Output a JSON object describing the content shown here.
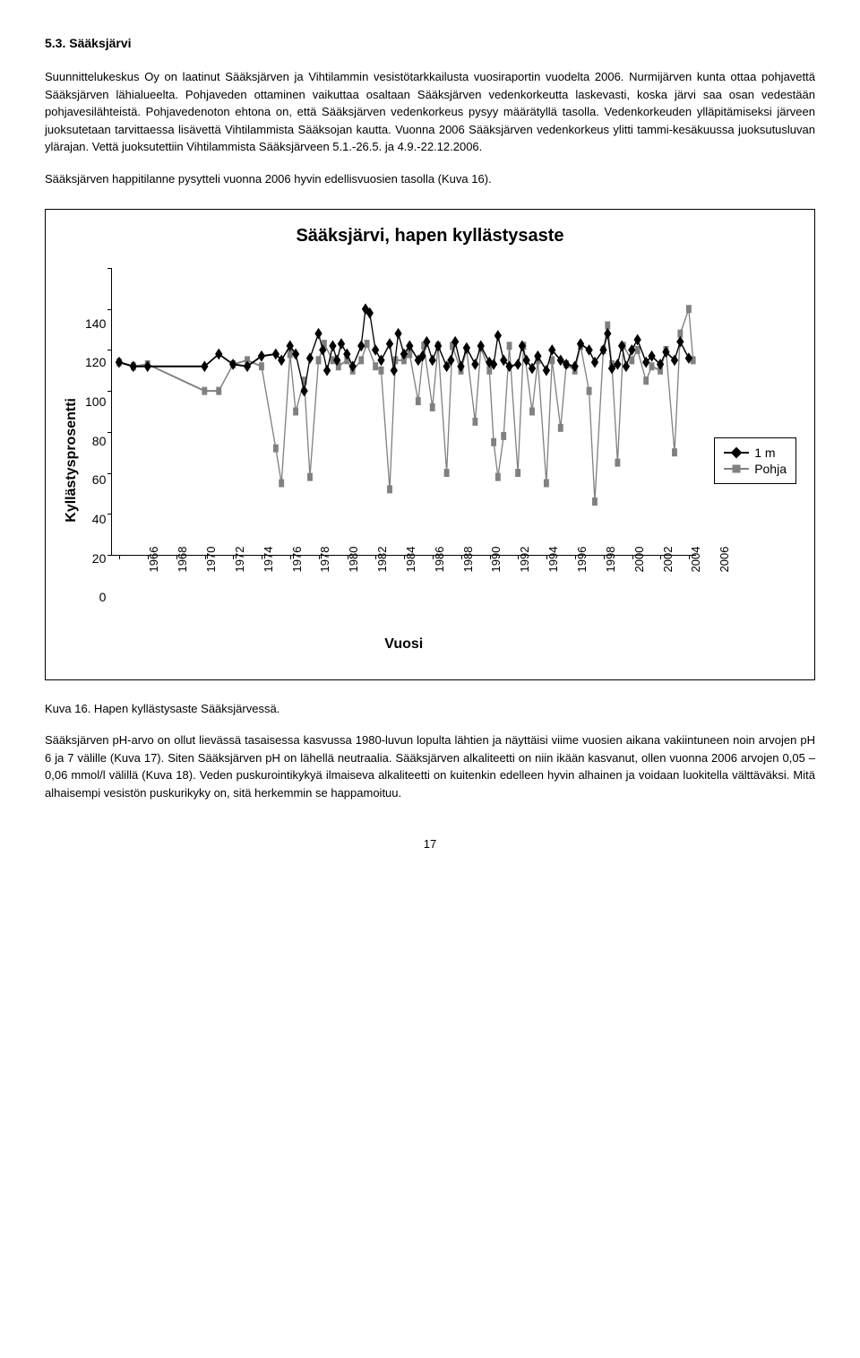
{
  "section_heading": "5.3. Sääksjärvi",
  "para1": "Suunnittelukeskus Oy on laatinut Sääksjärven ja Vihtilammin vesistötarkkailusta vuosiraportin vuodelta 2006. Nurmijärven kunta ottaa pohjavettä Sääksjärven lähialueelta. Pohjaveden ottaminen vaikuttaa osaltaan Sääksjärven vedenkorkeutta laskevasti, koska järvi saa osan vedestään pohjavesilähteistä. Pohjavedenoton ehtona on, että Sääksjärven vedenkorkeus pysyy määrätyllä tasolla. Vedenkorkeuden ylläpitämiseksi järveen juoksutetaan tarvittaessa lisävettä Vihtilammista Sääksojan kautta. Vuonna 2006 Sääksjärven vedenkorkeus ylitti tammi-kesäkuussa juoksutusluvan ylärajan. Vettä juoksutettiin Vihtilammista Sääksjärveen 5.1.-26.5. ja 4.9.-22.12.2006.",
  "para2": "Sääksjärven happitilanne pysytteli vuonna 2006 hyvin edellisvuosien tasolla (Kuva 16).",
  "chart": {
    "title": "Sääksjärvi, hapen kyllästysaste",
    "ylabel": "Kyllästysprosentti",
    "xlabel": "Vuosi",
    "ylim": [
      0,
      140
    ],
    "ytick_step": 20,
    "xmin": 1966,
    "xmax": 2006,
    "xlabels": [
      1966,
      1968,
      1970,
      1972,
      1974,
      1976,
      1978,
      1980,
      1982,
      1984,
      1986,
      1988,
      1990,
      1992,
      1994,
      1996,
      1998,
      2000,
      2002,
      2004,
      2006
    ],
    "legend": [
      {
        "label": "1 m",
        "color": "#000000",
        "marker": "diamond"
      },
      {
        "label": "Pohja",
        "color": "#808080",
        "marker": "square"
      }
    ],
    "series_1m": {
      "color": "#000000",
      "marker": "diamond",
      "points": [
        [
          1966,
          94
        ],
        [
          1967,
          92
        ],
        [
          1968,
          92
        ],
        [
          1972,
          92
        ],
        [
          1973,
          98
        ],
        [
          1974,
          93
        ],
        [
          1975,
          92
        ],
        [
          1976,
          97
        ],
        [
          1977,
          98
        ],
        [
          1977.4,
          95
        ],
        [
          1978,
          102
        ],
        [
          1978.4,
          98
        ],
        [
          1979,
          80
        ],
        [
          1979.4,
          96
        ],
        [
          1980,
          108
        ],
        [
          1980.3,
          100
        ],
        [
          1980.6,
          90
        ],
        [
          1981,
          102
        ],
        [
          1981.3,
          95
        ],
        [
          1981.6,
          103
        ],
        [
          1982,
          98
        ],
        [
          1982.4,
          92
        ],
        [
          1983,
          102
        ],
        [
          1983.3,
          120
        ],
        [
          1983.6,
          118
        ],
        [
          1984,
          100
        ],
        [
          1984.4,
          95
        ],
        [
          1985,
          103
        ],
        [
          1985.3,
          90
        ],
        [
          1985.6,
          108
        ],
        [
          1986,
          98
        ],
        [
          1986.4,
          102
        ],
        [
          1987,
          95
        ],
        [
          1987.3,
          97
        ],
        [
          1987.6,
          104
        ],
        [
          1988,
          95
        ],
        [
          1988.4,
          102
        ],
        [
          1989,
          92
        ],
        [
          1989.3,
          95
        ],
        [
          1989.6,
          104
        ],
        [
          1990,
          92
        ],
        [
          1990.4,
          101
        ],
        [
          1991,
          93
        ],
        [
          1991.4,
          102
        ],
        [
          1992,
          94
        ],
        [
          1992.3,
          93
        ],
        [
          1992.6,
          107
        ],
        [
          1993,
          95
        ],
        [
          1993.4,
          92
        ],
        [
          1994,
          93
        ],
        [
          1994.3,
          102
        ],
        [
          1994.6,
          95
        ],
        [
          1995,
          91
        ],
        [
          1995.4,
          97
        ],
        [
          1996,
          90
        ],
        [
          1996.4,
          100
        ],
        [
          1997,
          95
        ],
        [
          1997.4,
          93
        ],
        [
          1998,
          92
        ],
        [
          1998.4,
          103
        ],
        [
          1999,
          100
        ],
        [
          1999.4,
          94
        ],
        [
          2000,
          100
        ],
        [
          2000.3,
          108
        ],
        [
          2000.6,
          91
        ],
        [
          2001,
          93
        ],
        [
          2001.3,
          102
        ],
        [
          2001.6,
          92
        ],
        [
          2002,
          100
        ],
        [
          2002.4,
          105
        ],
        [
          2003,
          94
        ],
        [
          2003.4,
          97
        ],
        [
          2004,
          93
        ],
        [
          2004.4,
          99
        ],
        [
          2005,
          95
        ],
        [
          2005.4,
          104
        ],
        [
          2006,
          96
        ]
      ]
    },
    "series_pohja": {
      "color": "#808080",
      "marker": "square",
      "points": [
        [
          1966,
          94
        ],
        [
          1967,
          92
        ],
        [
          1968,
          93
        ],
        [
          1972,
          80
        ],
        [
          1973,
          80
        ],
        [
          1974,
          93
        ],
        [
          1975,
          95
        ],
        [
          1976,
          92
        ],
        [
          1977,
          52
        ],
        [
          1977.4,
          35
        ],
        [
          1978,
          98
        ],
        [
          1978.4,
          70
        ],
        [
          1979,
          85
        ],
        [
          1979.4,
          38
        ],
        [
          1980,
          95
        ],
        [
          1980.4,
          103
        ],
        [
          1981,
          95
        ],
        [
          1981.4,
          92
        ],
        [
          1982,
          95
        ],
        [
          1982.4,
          90
        ],
        [
          1983,
          95
        ],
        [
          1983.4,
          103
        ],
        [
          1984,
          92
        ],
        [
          1984.4,
          90
        ],
        [
          1985,
          32
        ],
        [
          1985.4,
          95
        ],
        [
          1986,
          95
        ],
        [
          1986.4,
          98
        ],
        [
          1987,
          75
        ],
        [
          1987.4,
          102
        ],
        [
          1988,
          72
        ],
        [
          1988.4,
          102
        ],
        [
          1989,
          40
        ],
        [
          1989.4,
          102
        ],
        [
          1990,
          90
        ],
        [
          1990.4,
          100
        ],
        [
          1991,
          65
        ],
        [
          1991.4,
          101
        ],
        [
          1992,
          90
        ],
        [
          1992.3,
          55
        ],
        [
          1992.6,
          38
        ],
        [
          1993,
          58
        ],
        [
          1993.4,
          102
        ],
        [
          1994,
          40
        ],
        [
          1994.4,
          102
        ],
        [
          1995,
          70
        ],
        [
          1995.4,
          95
        ],
        [
          1996,
          35
        ],
        [
          1996.4,
          95
        ],
        [
          1997,
          62
        ],
        [
          1997.4,
          93
        ],
        [
          1998,
          90
        ],
        [
          1998.4,
          102
        ],
        [
          1999,
          80
        ],
        [
          1999.4,
          26
        ],
        [
          2000,
          100
        ],
        [
          2000.3,
          112
        ],
        [
          2000.6,
          93
        ],
        [
          2001,
          45
        ],
        [
          2001.4,
          102
        ],
        [
          2002,
          95
        ],
        [
          2002.4,
          100
        ],
        [
          2003,
          85
        ],
        [
          2003.4,
          92
        ],
        [
          2004,
          90
        ],
        [
          2004.4,
          100
        ],
        [
          2005,
          50
        ],
        [
          2005.4,
          108
        ],
        [
          2006,
          120
        ],
        [
          2006.3,
          95
        ]
      ]
    }
  },
  "caption": "Kuva 16. Hapen kyllästysaste Sääksjärvessä.",
  "para3": "Sääksjärven pH-arvo on ollut lievässä tasaisessa kasvussa 1980-luvun lopulta lähtien ja näyttäisi viime vuosien aikana vakiintuneen noin arvojen pH 6 ja 7 välille (Kuva 17). Siten Sääksjärven pH on lähellä neutraalia. Sääksjärven alkaliteetti on niin ikään kasvanut, ollen vuonna 2006 arvojen 0,05 – 0,06 mmol/l välillä (Kuva 18). Veden puskurointikykyä ilmaiseva alkaliteetti on kuitenkin edelleen hyvin alhainen ja voidaan luokitella välttäväksi. Mitä alhaisempi vesistön puskurikyky on, sitä herkemmin se happamoituu.",
  "page_number": "17"
}
